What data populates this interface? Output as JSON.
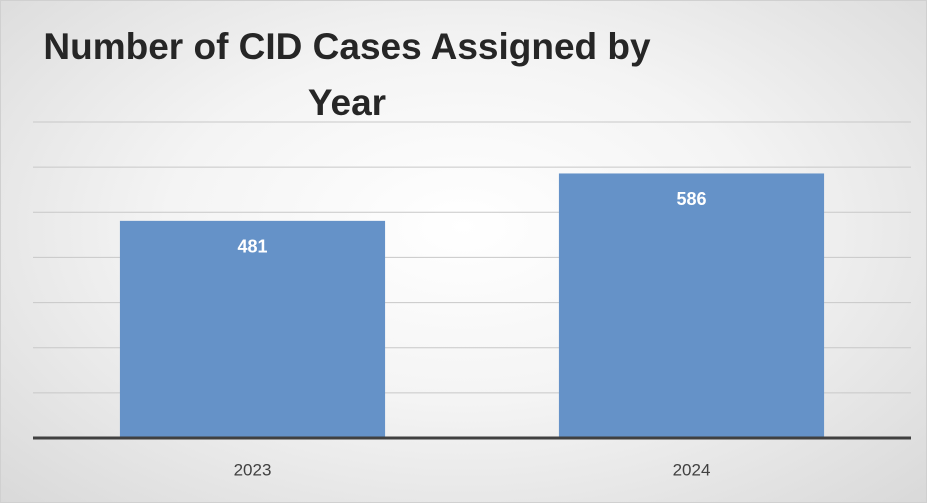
{
  "chart_data": {
    "type": "bar",
    "title": "Number of CID Cases Assigned by Year",
    "categories": [
      "2023",
      "2024"
    ],
    "values": [
      481,
      586
    ],
    "color": "#6592c8",
    "ylim": [
      0,
      700
    ],
    "yticks": [
      0,
      100,
      200,
      300,
      400,
      500,
      600,
      700
    ],
    "grid": true
  }
}
